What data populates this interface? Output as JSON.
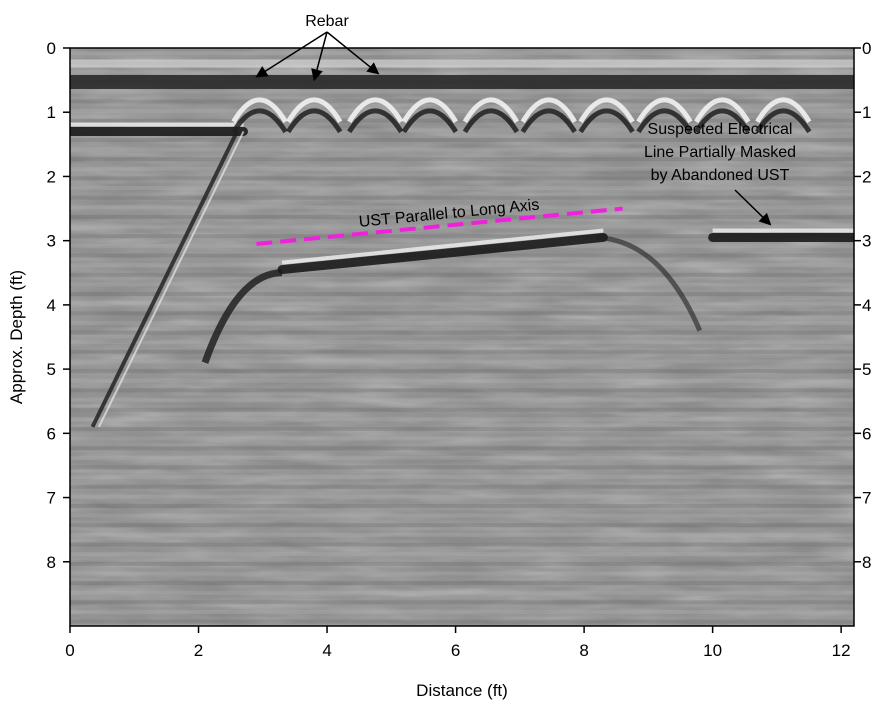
{
  "chart_data": {
    "type": "heatmap",
    "title": "",
    "xlabel": "Distance (ft)",
    "ylabel": "Approx. Depth (ft)",
    "xlim": [
      0,
      12.2
    ],
    "ylim": [
      0,
      9
    ],
    "y_inverted": true,
    "x_ticks": [
      "0",
      "2",
      "4",
      "6",
      "8",
      "10",
      "12"
    ],
    "y_ticks": [
      "0",
      "1",
      "2",
      "3",
      "4",
      "5",
      "6",
      "7",
      "8"
    ],
    "right_y_ticks": [
      "0",
      "1",
      "2",
      "3",
      "4",
      "5",
      "6",
      "7",
      "8"
    ],
    "colormap": "grayscale",
    "grid": false,
    "legend": "none",
    "rebar_label": "Rebar",
    "rebar_arrow_targets": [
      {
        "x": 2.9,
        "y": 0.45
      },
      {
        "x": 3.8,
        "y": 0.5
      },
      {
        "x": 4.8,
        "y": 0.4
      }
    ],
    "rebar_hyperbola_apex": [
      {
        "x": 2.95,
        "depth": 0.62
      },
      {
        "x": 3.8,
        "depth": 0.62
      },
      {
        "x": 4.75,
        "depth": 0.62
      },
      {
        "x": 5.6,
        "depth": 0.62
      },
      {
        "x": 6.55,
        "depth": 0.62
      },
      {
        "x": 7.45,
        "depth": 0.62
      },
      {
        "x": 8.35,
        "depth": 0.62
      },
      {
        "x": 9.25,
        "depth": 0.62
      },
      {
        "x": 10.15,
        "depth": 0.62
      },
      {
        "x": 11.1,
        "depth": 0.62
      }
    ],
    "ust_line": {
      "label": "UST Parallel to Long Axis",
      "color": "#ee22dd",
      "start": {
        "x": 2.9,
        "y": 3.05
      },
      "end": {
        "x": 8.6,
        "y": 2.5
      }
    },
    "electrical_annotation": {
      "lines": [
        "Suspected Electrical",
        "Line Partially Masked",
        "by Abandoned UST"
      ],
      "arrow_target": {
        "x": 10.9,
        "y": 2.75
      }
    },
    "reflectors": [
      {
        "name": "shallow left",
        "x": [
          0.0,
          2.7
        ],
        "depth": 1.3
      },
      {
        "name": "UST top",
        "x": [
          3.3,
          8.3
        ],
        "depth_start": 3.45,
        "depth_end": 2.95
      },
      {
        "name": "electrical line",
        "x": [
          10.0,
          12.2
        ],
        "depth": 2.95
      }
    ]
  }
}
